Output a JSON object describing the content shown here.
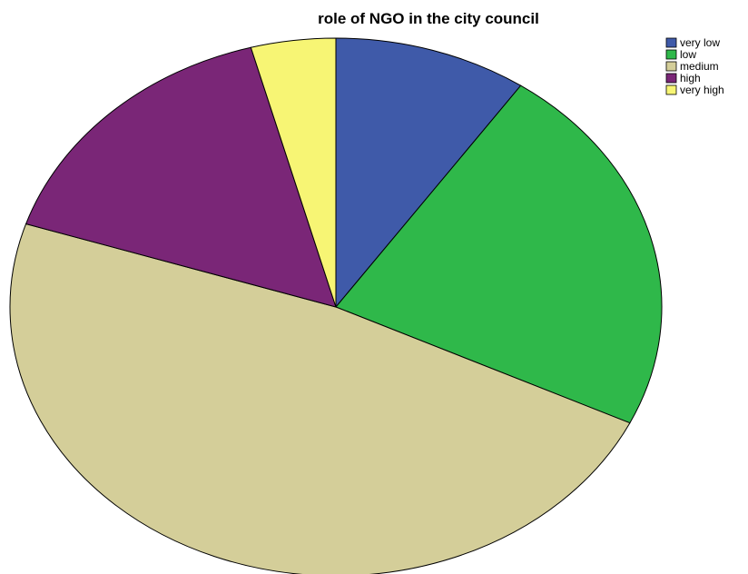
{
  "chart_data": {
    "type": "pie",
    "title": "role of NGO in the city council",
    "categories": [
      "very low",
      "low",
      "medium",
      "high",
      "very high"
    ],
    "values": [
      9.6,
      22.5,
      47.9,
      15.8,
      4.2
    ],
    "colors": [
      "#3f5aa9",
      "#2fb84a",
      "#d4ce99",
      "#7a2677",
      "#f7f574"
    ],
    "legend_placement": "top-right",
    "start": "top",
    "direction": "clockwise"
  }
}
